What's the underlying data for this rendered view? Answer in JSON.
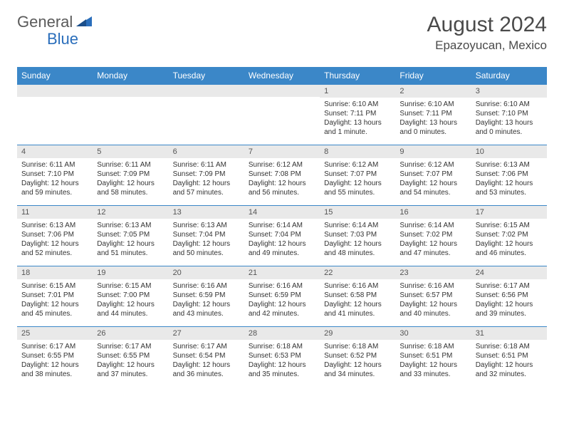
{
  "logo": {
    "text1": "General",
    "text2": "Blue"
  },
  "title": "August 2024",
  "location": "Epazoyucan, Mexico",
  "colors": {
    "header_bg": "#3b87c8",
    "header_text": "#ffffff",
    "daynum_bg": "#e9e9e9",
    "row_border": "#3b87c8",
    "title_text": "#4a4a4a",
    "body_text": "#333333",
    "logo_gray": "#5a5a5a",
    "logo_blue": "#2a6ebb"
  },
  "day_headers": [
    "Sunday",
    "Monday",
    "Tuesday",
    "Wednesday",
    "Thursday",
    "Friday",
    "Saturday"
  ],
  "weeks": [
    [
      null,
      null,
      null,
      null,
      {
        "day": "1",
        "sunrise": "Sunrise: 6:10 AM",
        "sunset": "Sunset: 7:11 PM",
        "daylight1": "Daylight: 13 hours",
        "daylight2": "and 1 minute."
      },
      {
        "day": "2",
        "sunrise": "Sunrise: 6:10 AM",
        "sunset": "Sunset: 7:11 PM",
        "daylight1": "Daylight: 13 hours",
        "daylight2": "and 0 minutes."
      },
      {
        "day": "3",
        "sunrise": "Sunrise: 6:10 AM",
        "sunset": "Sunset: 7:10 PM",
        "daylight1": "Daylight: 13 hours",
        "daylight2": "and 0 minutes."
      }
    ],
    [
      {
        "day": "4",
        "sunrise": "Sunrise: 6:11 AM",
        "sunset": "Sunset: 7:10 PM",
        "daylight1": "Daylight: 12 hours",
        "daylight2": "and 59 minutes."
      },
      {
        "day": "5",
        "sunrise": "Sunrise: 6:11 AM",
        "sunset": "Sunset: 7:09 PM",
        "daylight1": "Daylight: 12 hours",
        "daylight2": "and 58 minutes."
      },
      {
        "day": "6",
        "sunrise": "Sunrise: 6:11 AM",
        "sunset": "Sunset: 7:09 PM",
        "daylight1": "Daylight: 12 hours",
        "daylight2": "and 57 minutes."
      },
      {
        "day": "7",
        "sunrise": "Sunrise: 6:12 AM",
        "sunset": "Sunset: 7:08 PM",
        "daylight1": "Daylight: 12 hours",
        "daylight2": "and 56 minutes."
      },
      {
        "day": "8",
        "sunrise": "Sunrise: 6:12 AM",
        "sunset": "Sunset: 7:07 PM",
        "daylight1": "Daylight: 12 hours",
        "daylight2": "and 55 minutes."
      },
      {
        "day": "9",
        "sunrise": "Sunrise: 6:12 AM",
        "sunset": "Sunset: 7:07 PM",
        "daylight1": "Daylight: 12 hours",
        "daylight2": "and 54 minutes."
      },
      {
        "day": "10",
        "sunrise": "Sunrise: 6:13 AM",
        "sunset": "Sunset: 7:06 PM",
        "daylight1": "Daylight: 12 hours",
        "daylight2": "and 53 minutes."
      }
    ],
    [
      {
        "day": "11",
        "sunrise": "Sunrise: 6:13 AM",
        "sunset": "Sunset: 7:06 PM",
        "daylight1": "Daylight: 12 hours",
        "daylight2": "and 52 minutes."
      },
      {
        "day": "12",
        "sunrise": "Sunrise: 6:13 AM",
        "sunset": "Sunset: 7:05 PM",
        "daylight1": "Daylight: 12 hours",
        "daylight2": "and 51 minutes."
      },
      {
        "day": "13",
        "sunrise": "Sunrise: 6:13 AM",
        "sunset": "Sunset: 7:04 PM",
        "daylight1": "Daylight: 12 hours",
        "daylight2": "and 50 minutes."
      },
      {
        "day": "14",
        "sunrise": "Sunrise: 6:14 AM",
        "sunset": "Sunset: 7:04 PM",
        "daylight1": "Daylight: 12 hours",
        "daylight2": "and 49 minutes."
      },
      {
        "day": "15",
        "sunrise": "Sunrise: 6:14 AM",
        "sunset": "Sunset: 7:03 PM",
        "daylight1": "Daylight: 12 hours",
        "daylight2": "and 48 minutes."
      },
      {
        "day": "16",
        "sunrise": "Sunrise: 6:14 AM",
        "sunset": "Sunset: 7:02 PM",
        "daylight1": "Daylight: 12 hours",
        "daylight2": "and 47 minutes."
      },
      {
        "day": "17",
        "sunrise": "Sunrise: 6:15 AM",
        "sunset": "Sunset: 7:02 PM",
        "daylight1": "Daylight: 12 hours",
        "daylight2": "and 46 minutes."
      }
    ],
    [
      {
        "day": "18",
        "sunrise": "Sunrise: 6:15 AM",
        "sunset": "Sunset: 7:01 PM",
        "daylight1": "Daylight: 12 hours",
        "daylight2": "and 45 minutes."
      },
      {
        "day": "19",
        "sunrise": "Sunrise: 6:15 AM",
        "sunset": "Sunset: 7:00 PM",
        "daylight1": "Daylight: 12 hours",
        "daylight2": "and 44 minutes."
      },
      {
        "day": "20",
        "sunrise": "Sunrise: 6:16 AM",
        "sunset": "Sunset: 6:59 PM",
        "daylight1": "Daylight: 12 hours",
        "daylight2": "and 43 minutes."
      },
      {
        "day": "21",
        "sunrise": "Sunrise: 6:16 AM",
        "sunset": "Sunset: 6:59 PM",
        "daylight1": "Daylight: 12 hours",
        "daylight2": "and 42 minutes."
      },
      {
        "day": "22",
        "sunrise": "Sunrise: 6:16 AM",
        "sunset": "Sunset: 6:58 PM",
        "daylight1": "Daylight: 12 hours",
        "daylight2": "and 41 minutes."
      },
      {
        "day": "23",
        "sunrise": "Sunrise: 6:16 AM",
        "sunset": "Sunset: 6:57 PM",
        "daylight1": "Daylight: 12 hours",
        "daylight2": "and 40 minutes."
      },
      {
        "day": "24",
        "sunrise": "Sunrise: 6:17 AM",
        "sunset": "Sunset: 6:56 PM",
        "daylight1": "Daylight: 12 hours",
        "daylight2": "and 39 minutes."
      }
    ],
    [
      {
        "day": "25",
        "sunrise": "Sunrise: 6:17 AM",
        "sunset": "Sunset: 6:55 PM",
        "daylight1": "Daylight: 12 hours",
        "daylight2": "and 38 minutes."
      },
      {
        "day": "26",
        "sunrise": "Sunrise: 6:17 AM",
        "sunset": "Sunset: 6:55 PM",
        "daylight1": "Daylight: 12 hours",
        "daylight2": "and 37 minutes."
      },
      {
        "day": "27",
        "sunrise": "Sunrise: 6:17 AM",
        "sunset": "Sunset: 6:54 PM",
        "daylight1": "Daylight: 12 hours",
        "daylight2": "and 36 minutes."
      },
      {
        "day": "28",
        "sunrise": "Sunrise: 6:18 AM",
        "sunset": "Sunset: 6:53 PM",
        "daylight1": "Daylight: 12 hours",
        "daylight2": "and 35 minutes."
      },
      {
        "day": "29",
        "sunrise": "Sunrise: 6:18 AM",
        "sunset": "Sunset: 6:52 PM",
        "daylight1": "Daylight: 12 hours",
        "daylight2": "and 34 minutes."
      },
      {
        "day": "30",
        "sunrise": "Sunrise: 6:18 AM",
        "sunset": "Sunset: 6:51 PM",
        "daylight1": "Daylight: 12 hours",
        "daylight2": "and 33 minutes."
      },
      {
        "day": "31",
        "sunrise": "Sunrise: 6:18 AM",
        "sunset": "Sunset: 6:51 PM",
        "daylight1": "Daylight: 12 hours",
        "daylight2": "and 32 minutes."
      }
    ]
  ]
}
